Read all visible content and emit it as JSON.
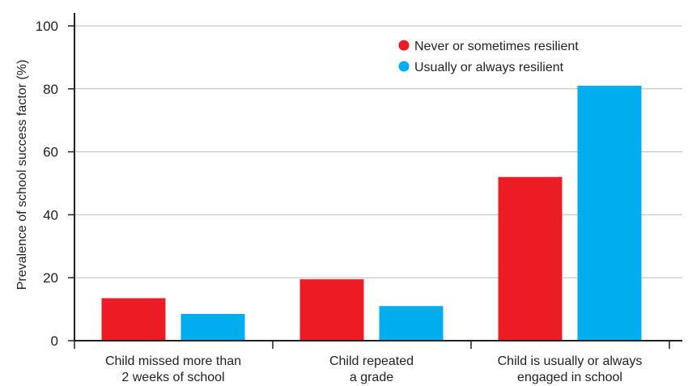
{
  "chart_data": {
    "type": "bar",
    "title": "",
    "xlabel": "",
    "ylabel": "Prevalence of school success factor (%)",
    "ylim": [
      0,
      100
    ],
    "yticks": [
      "0",
      "20",
      "40",
      "60",
      "80",
      "100"
    ],
    "grid": true,
    "legend_position": "top-right",
    "categories": [
      [
        "Child missed more than",
        "2 weeks of school"
      ],
      [
        "Child repeated",
        "a grade"
      ],
      [
        "Child is usually or always",
        "engaged in school"
      ]
    ],
    "series": [
      {
        "name": "Never or sometimes resilient",
        "color": "#ec1c24",
        "values": [
          13.5,
          19.5,
          52
        ]
      },
      {
        "name": "Usually or always resilient",
        "color": "#00aeef",
        "values": [
          8.5,
          11,
          81
        ]
      }
    ]
  }
}
